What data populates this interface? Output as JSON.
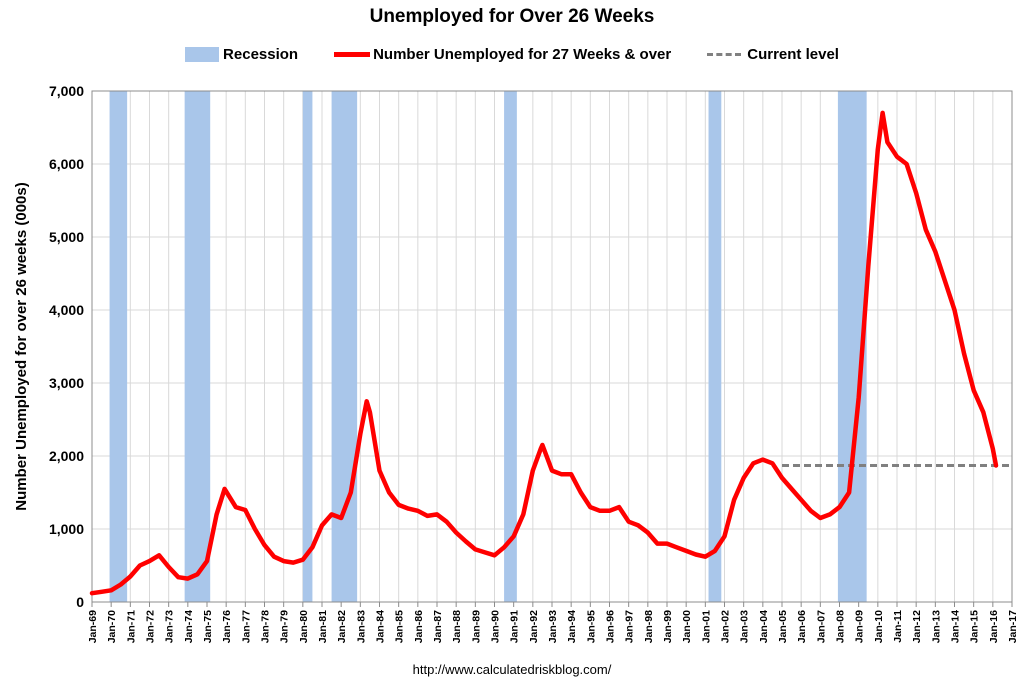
{
  "title": "Unemployed for Over 26 Weeks",
  "footer": "http://www.calculatedriskblog.com/",
  "legend": {
    "recession": "Recession",
    "series": "Number Unemployed for 27 Weeks & over",
    "current": "Current level"
  },
  "colors": {
    "recession": "#a9c6ea",
    "series": "#ff0000",
    "current": "#808080",
    "grid": "#d9d9d9"
  },
  "chart_data": {
    "type": "line",
    "title": "Unemployed for Over 26 Weeks",
    "xlabel": "",
    "ylabel": "Number Unemployed for over 26 weeks (000s)",
    "ylim": [
      0,
      7000
    ],
    "xlim": [
      "1969-01",
      "2017-01"
    ],
    "y_ticks": [
      0,
      1000,
      2000,
      3000,
      4000,
      5000,
      6000,
      7000
    ],
    "y_tick_labels": [
      "0",
      "1,000",
      "2,000",
      "3,000",
      "4,000",
      "5,000",
      "6,000",
      "7,000"
    ],
    "x_tick_labels": [
      "Jan-69",
      "Jan-70",
      "Jan-71",
      "Jan-72",
      "Jan-73",
      "Jan-74",
      "Jan-75",
      "Jan-76",
      "Jan-77",
      "Jan-78",
      "Jan-79",
      "Jan-80",
      "Jan-81",
      "Jan-82",
      "Jan-83",
      "Jan-84",
      "Jan-85",
      "Jan-86",
      "Jan-87",
      "Jan-88",
      "Jan-89",
      "Jan-90",
      "Jan-91",
      "Jan-92",
      "Jan-93",
      "Jan-94",
      "Jan-95",
      "Jan-96",
      "Jan-97",
      "Jan-98",
      "Jan-99",
      "Jan-00",
      "Jan-01",
      "Jan-02",
      "Jan-03",
      "Jan-04",
      "Jan-05",
      "Jan-06",
      "Jan-07",
      "Jan-08",
      "Jan-09",
      "Jan-10",
      "Jan-11",
      "Jan-12",
      "Jan-13",
      "Jan-14",
      "Jan-15",
      "Jan-16",
      "Jan-17"
    ],
    "grid": true,
    "legend_position": "top",
    "recessions": [
      {
        "start": "1969-12",
        "end": "1970-11"
      },
      {
        "start": "1973-11",
        "end": "1975-03"
      },
      {
        "start": "1980-01",
        "end": "1980-07"
      },
      {
        "start": "1981-07",
        "end": "1982-11"
      },
      {
        "start": "1990-07",
        "end": "1991-03"
      },
      {
        "start": "2001-03",
        "end": "2001-11"
      },
      {
        "start": "2007-12",
        "end": "2009-06"
      }
    ],
    "current_level": {
      "value": 1870,
      "start": "2005-01",
      "end": "2017-01"
    },
    "series": [
      {
        "name": "Number Unemployed for 27 Weeks & over",
        "x": [
          "1969-01",
          "1969-07",
          "1970-01",
          "1970-07",
          "1971-01",
          "1971-07",
          "1972-01",
          "1972-07",
          "1973-01",
          "1973-07",
          "1974-01",
          "1974-07",
          "1975-01",
          "1975-07",
          "1975-12",
          "1976-07",
          "1977-01",
          "1977-07",
          "1978-01",
          "1978-07",
          "1979-01",
          "1979-07",
          "1980-01",
          "1980-07",
          "1981-01",
          "1981-07",
          "1982-01",
          "1982-07",
          "1983-01",
          "1983-05",
          "1983-07",
          "1984-01",
          "1984-07",
          "1985-01",
          "1985-07",
          "1986-01",
          "1986-07",
          "1987-01",
          "1987-07",
          "1988-01",
          "1988-07",
          "1989-01",
          "1989-07",
          "1990-01",
          "1990-07",
          "1991-01",
          "1991-07",
          "1992-01",
          "1992-06",
          "1992-07",
          "1993-01",
          "1993-07",
          "1994-01",
          "1994-07",
          "1995-01",
          "1995-07",
          "1996-01",
          "1996-07",
          "1997-01",
          "1997-07",
          "1998-01",
          "1998-07",
          "1999-01",
          "1999-07",
          "2000-01",
          "2000-07",
          "2001-01",
          "2001-07",
          "2002-01",
          "2002-07",
          "2003-01",
          "2003-07",
          "2004-01",
          "2004-07",
          "2005-01",
          "2005-07",
          "2006-01",
          "2006-07",
          "2007-01",
          "2007-07",
          "2008-01",
          "2008-07",
          "2009-01",
          "2009-07",
          "2010-01",
          "2010-04",
          "2010-07",
          "2011-01",
          "2011-07",
          "2012-01",
          "2012-07",
          "2013-01",
          "2013-07",
          "2014-01",
          "2014-07",
          "2015-01",
          "2015-07",
          "2016-01",
          "2016-03"
        ],
        "y": [
          120,
          140,
          160,
          240,
          350,
          500,
          560,
          640,
          480,
          340,
          320,
          380,
          560,
          1200,
          1550,
          1300,
          1260,
          1000,
          780,
          620,
          560,
          540,
          580,
          750,
          1050,
          1200,
          1150,
          1500,
          2300,
          2750,
          2600,
          1800,
          1500,
          1330,
          1280,
          1250,
          1180,
          1200,
          1100,
          950,
          830,
          720,
          680,
          640,
          750,
          900,
          1200,
          1800,
          2100,
          2150,
          1800,
          1750,
          1750,
          1500,
          1300,
          1250,
          1250,
          1300,
          1100,
          1050,
          950,
          800,
          800,
          750,
          700,
          650,
          620,
          700,
          900,
          1400,
          1700,
          1900,
          1950,
          1900,
          1700,
          1550,
          1400,
          1250,
          1150,
          1200,
          1300,
          1500,
          2800,
          4600,
          6200,
          6700,
          6300,
          6100,
          6000,
          5600,
          5100,
          4800,
          4400,
          4000,
          3400,
          2900,
          2600,
          2100,
          1870
        ]
      }
    ]
  }
}
